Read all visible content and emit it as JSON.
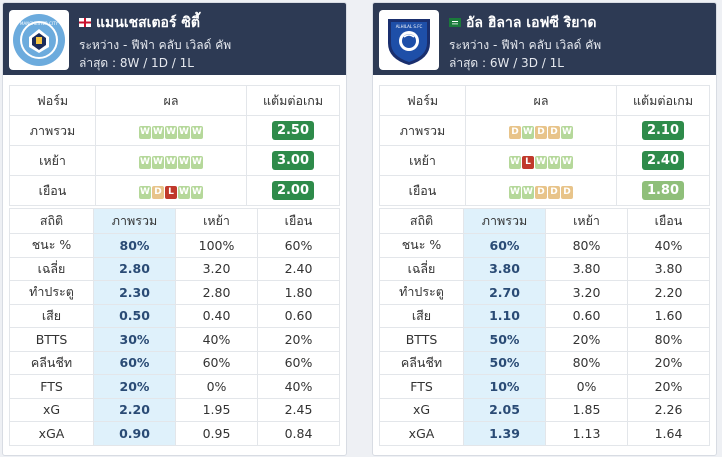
{
  "teams": [
    {
      "name": "แมนเชสเตอร์ ซิตี้",
      "logo_text": "MANCHESTER CITY",
      "competition": "ระหว่าง - ฟีฟ่า คลับ เวิลด์ คัพ",
      "recent": "ล่าสุด : 8W / 1D / 1L",
      "flag": "england",
      "form_headers": [
        "ฟอร์ม",
        "ผล",
        "แต้มต่อเกม"
      ],
      "form_rows": [
        {
          "label": "ภาพรวม",
          "results": [
            "W",
            "W",
            "W",
            "W",
            "W"
          ],
          "ppg": "2.50",
          "ppg_color": "#2e8b4a"
        },
        {
          "label": "เหย้า",
          "results": [
            "W",
            "W",
            "W",
            "W",
            "W"
          ],
          "ppg": "3.00",
          "ppg_color": "#2e8b4a"
        },
        {
          "label": "เยือน",
          "results": [
            "W",
            "D",
            "L",
            "W",
            "W"
          ],
          "ppg": "2.00",
          "ppg_color": "#2e8b4a"
        }
      ],
      "stats_headers": [
        "สถิติ",
        "ภาพรวม",
        "เหย้า",
        "เยือน"
      ],
      "stats_rows": [
        {
          "label": "ชนะ %",
          "overall": "80%",
          "home": "100%",
          "away": "60%"
        },
        {
          "label": "เฉลี่ย",
          "overall": "2.80",
          "home": "3.20",
          "away": "2.40"
        },
        {
          "label": "ทำประตู",
          "overall": "2.30",
          "home": "2.80",
          "away": "1.80"
        },
        {
          "label": "เสีย",
          "overall": "0.50",
          "home": "0.40",
          "away": "0.60"
        },
        {
          "label": "BTTS",
          "overall": "30%",
          "home": "40%",
          "away": "20%"
        },
        {
          "label": "คลีนชีท",
          "overall": "60%",
          "home": "60%",
          "away": "60%"
        },
        {
          "label": "FTS",
          "overall": "20%",
          "home": "0%",
          "away": "40%"
        },
        {
          "label": "xG",
          "overall": "2.20",
          "home": "1.95",
          "away": "2.45"
        },
        {
          "label": "xGA",
          "overall": "0.90",
          "home": "0.95",
          "away": "0.84"
        }
      ]
    },
    {
      "name": "อัล ฮิลาล เอฟซี ริยาด",
      "logo_text": "ALHILAL S.FC",
      "competition": "ระหว่าง - ฟีฟ่า คลับ เวิลด์ คัพ",
      "recent": "ล่าสุด : 6W / 3D / 1L",
      "flag": "saudi",
      "form_headers": [
        "ฟอร์ม",
        "ผล",
        "แต้มต่อเกม"
      ],
      "form_rows": [
        {
          "label": "ภาพรวม",
          "results": [
            "D",
            "W",
            "D",
            "D",
            "W"
          ],
          "ppg": "2.10",
          "ppg_color": "#2e8b4a"
        },
        {
          "label": "เหย้า",
          "results": [
            "W",
            "L",
            "W",
            "W",
            "W"
          ],
          "ppg": "2.40",
          "ppg_color": "#2e8b4a"
        },
        {
          "label": "เยือน",
          "results": [
            "W",
            "W",
            "D",
            "D",
            "D"
          ],
          "ppg": "1.80",
          "ppg_color": "#8fbf7a"
        }
      ],
      "stats_headers": [
        "สถิติ",
        "ภาพรวม",
        "เหย้า",
        "เยือน"
      ],
      "stats_rows": [
        {
          "label": "ชนะ %",
          "overall": "60%",
          "home": "80%",
          "away": "40%"
        },
        {
          "label": "เฉลี่ย",
          "overall": "3.80",
          "home": "3.80",
          "away": "3.80"
        },
        {
          "label": "ทำประตู",
          "overall": "2.70",
          "home": "3.20",
          "away": "2.20"
        },
        {
          "label": "เสีย",
          "overall": "1.10",
          "home": "0.60",
          "away": "1.60"
        },
        {
          "label": "BTTS",
          "overall": "50%",
          "home": "20%",
          "away": "80%"
        },
        {
          "label": "คลีนชีท",
          "overall": "50%",
          "home": "80%",
          "away": "20%"
        },
        {
          "label": "FTS",
          "overall": "10%",
          "home": "0%",
          "away": "20%"
        },
        {
          "label": "xG",
          "overall": "2.05",
          "home": "1.85",
          "away": "2.26"
        },
        {
          "label": "xGA",
          "overall": "1.39",
          "home": "1.13",
          "away": "1.64"
        }
      ]
    }
  ]
}
